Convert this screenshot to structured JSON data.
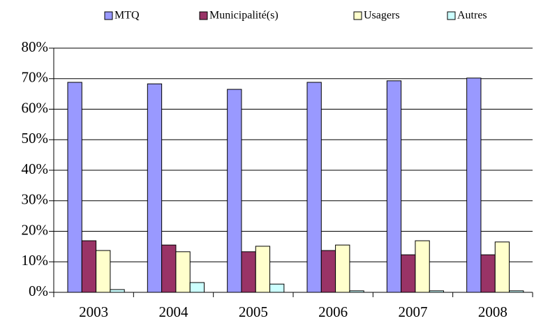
{
  "chart_data": {
    "type": "bar",
    "categories": [
      "2003",
      "2004",
      "2005",
      "2006",
      "2007",
      "2008"
    ],
    "series": [
      {
        "name": "MTQ",
        "color": "#9999ff",
        "values": [
          68.8,
          68.3,
          66.5,
          68.8,
          69.3,
          70.2
        ]
      },
      {
        "name": "Municipalité(s)",
        "color": "#993366",
        "values": [
          16.9,
          15.5,
          13.3,
          13.7,
          12.3,
          12.3
        ]
      },
      {
        "name": "Usagers",
        "color": "#ffffcc",
        "values": [
          13.7,
          13.3,
          15.1,
          15.5,
          16.9,
          16.5
        ]
      },
      {
        "name": "Autres",
        "color": "#ccffff",
        "values": [
          0.9,
          3.2,
          2.7,
          0.5,
          0.5,
          0.5
        ]
      }
    ],
    "ylim": [
      0,
      80
    ],
    "yticks": [
      {
        "value": 0,
        "label": "0%"
      },
      {
        "value": 10,
        "label": "10%"
      },
      {
        "value": 20,
        "label": "20%"
      },
      {
        "value": 30,
        "label": "30%"
      },
      {
        "value": 40,
        "label": "40%"
      },
      {
        "value": 50,
        "label": "50%"
      },
      {
        "value": 60,
        "label": "60%"
      },
      {
        "value": 70,
        "label": "70%"
      },
      {
        "value": 80,
        "label": "80%"
      }
    ],
    "grid": true,
    "legend": "top"
  }
}
